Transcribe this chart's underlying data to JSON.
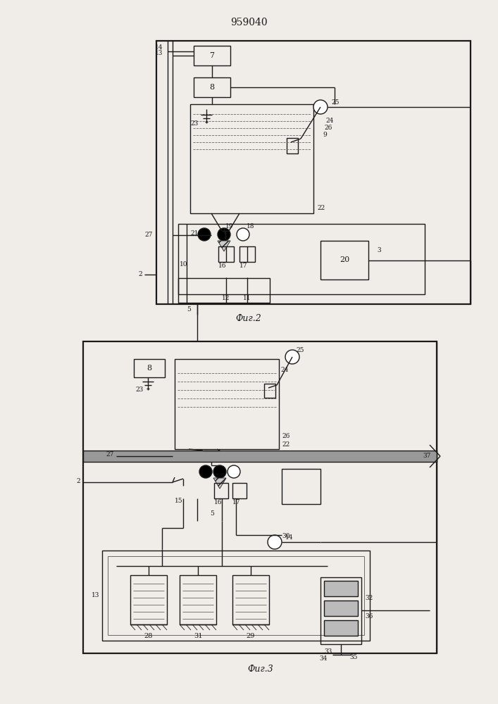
{
  "title": "959040",
  "fig2_label": "Фиг.2",
  "fig3_label": "Фиг.3",
  "bg_color": "#f0ede8",
  "line_color": "#1a1a1a",
  "lw": 1.0,
  "lw_thick": 1.6,
  "lw_thin": 0.6
}
